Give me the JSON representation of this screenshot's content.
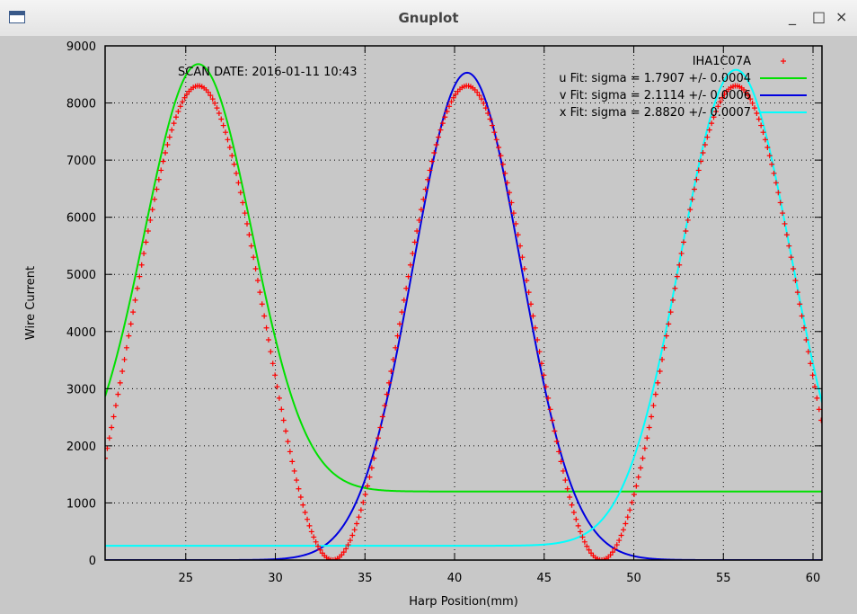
{
  "window": {
    "title": "Gnuplot",
    "minimize": "_",
    "maximize": "□",
    "close": "×"
  },
  "annotation": "SCAN DATE: 2016-01-11   10:43",
  "chart_data": {
    "type": "scatter",
    "title": "",
    "xlabel": "Harp Position(mm)",
    "ylabel": "Wire Current",
    "xlim": [
      20.5,
      60.5
    ],
    "ylim": [
      0,
      9000
    ],
    "xticks": [
      25,
      30,
      35,
      40,
      45,
      50,
      55,
      60
    ],
    "yticks": [
      0,
      1000,
      2000,
      3000,
      4000,
      5000,
      6000,
      7000,
      8000,
      9000
    ],
    "grid": true,
    "legend_position": "top-right",
    "series": [
      {
        "name": "IHA1C07A",
        "kind": "points",
        "marker": "+",
        "color": "#ff0000",
        "model": "cosine",
        "mean": 4150,
        "amplitude": 4150,
        "period": 15.0,
        "peak_x": 25.7,
        "x_step": 0.12
      },
      {
        "name": "u  Fit: sigma = 1.7907 +/- 0.0004",
        "kind": "line",
        "color": "#00e000",
        "model": "gaussian",
        "center": 25.7,
        "sigma": 3.0,
        "amplitude": 7480,
        "baseline": 1200
      },
      {
        "name": "v  Fit: sigma = 2.1114 +/- 0.0006",
        "kind": "line",
        "color": "#0000e0",
        "model": "gaussian",
        "center": 40.7,
        "sigma": 3.0,
        "amplitude": 8530,
        "baseline": 0
      },
      {
        "name": "x  Fit: sigma = 2.8820 +/- 0.0007",
        "kind": "line",
        "color": "#00ffff",
        "model": "gaussian",
        "center": 55.7,
        "sigma": 3.1,
        "amplitude": 8330,
        "baseline": 250
      }
    ]
  }
}
